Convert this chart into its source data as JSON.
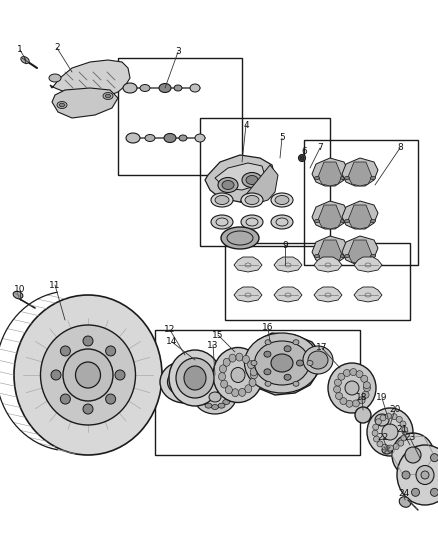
{
  "bg_color": "#ffffff",
  "fig_width": 4.38,
  "fig_height": 5.33,
  "dpi": 100,
  "line_color": "#1a1a1a",
  "label_fontsize": 6.5
}
